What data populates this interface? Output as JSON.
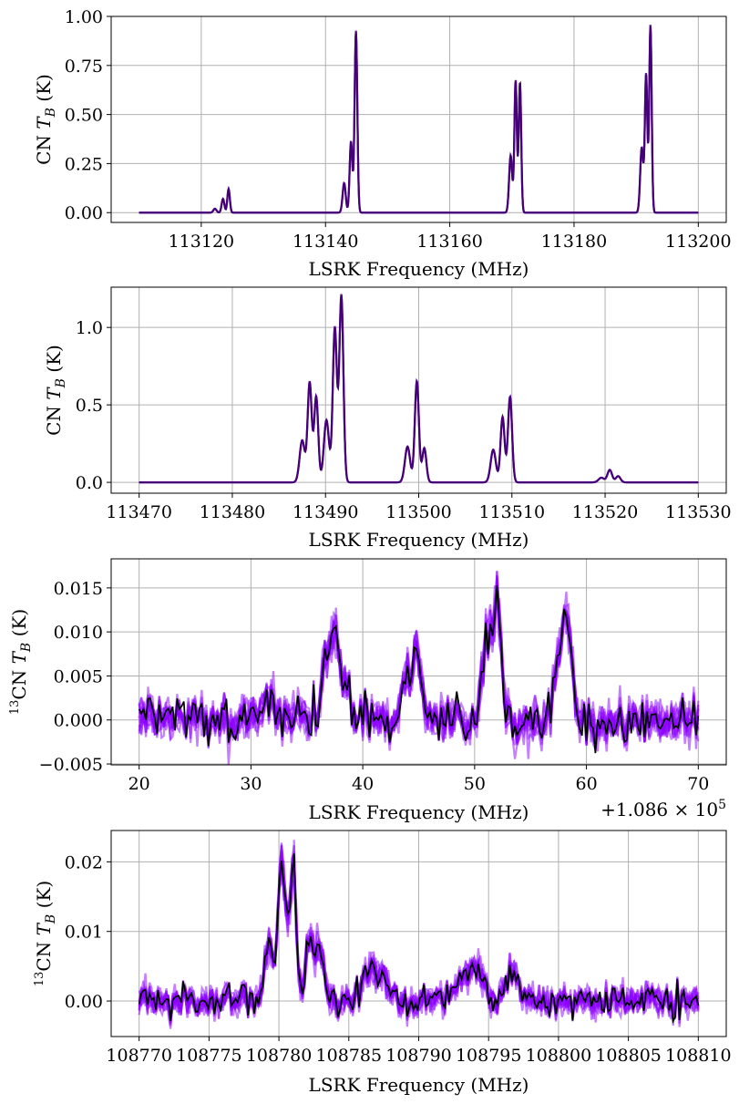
{
  "colors": {
    "samples": "#8b00ff",
    "posterior_mean": "#000000",
    "model": "#4b0082",
    "grid": "#b0b0b0"
  },
  "chart_data": [
    {
      "type": "line",
      "xlabel": "LSRK Frequency (MHz)",
      "ylabel": "CN T_B (K)",
      "ylabel_prefix": "CN ",
      "xlim": [
        113105.5,
        113204.5
      ],
      "ylim": [
        -0.05,
        1.0
      ],
      "xticks": [
        113120,
        113140,
        113160,
        113180,
        113200
      ],
      "xtick_labels": [
        "113120",
        "113140",
        "113160",
        "113180",
        "113200"
      ],
      "yticks": [
        0.0,
        0.25,
        0.5,
        0.75,
        1.0
      ],
      "ytick_labels": [
        "0.00",
        "0.25",
        "0.50",
        "0.75",
        "1.00"
      ],
      "grid": true,
      "x_range": [
        113110,
        113200
      ],
      "noisy": false,
      "components": [
        {
          "x": 113122.2,
          "amp": 0.02,
          "width": 0.25
        },
        {
          "x": 113123.5,
          "amp": 0.07,
          "width": 0.22
        },
        {
          "x": 113124.4,
          "amp": 0.12,
          "width": 0.2
        },
        {
          "x": 113143.0,
          "amp": 0.15,
          "width": 0.25
        },
        {
          "x": 113144.1,
          "amp": 0.36,
          "width": 0.22
        },
        {
          "x": 113144.9,
          "amp": 0.92,
          "width": 0.22
        },
        {
          "x": 113169.8,
          "amp": 0.29,
          "width": 0.25
        },
        {
          "x": 113170.6,
          "amp": 0.67,
          "width": 0.2
        },
        {
          "x": 113171.3,
          "amp": 0.66,
          "width": 0.2
        },
        {
          "x": 113190.9,
          "amp": 0.33,
          "width": 0.25
        },
        {
          "x": 113191.6,
          "amp": 0.7,
          "width": 0.2
        },
        {
          "x": 113192.3,
          "amp": 0.95,
          "width": 0.2
        }
      ]
    },
    {
      "type": "line",
      "xlabel": "LSRK Frequency (MHz)",
      "ylabel": "CN T_B (K)",
      "ylabel_prefix": "CN ",
      "xlim": [
        113467,
        113533
      ],
      "ylim": [
        -0.07,
        1.26
      ],
      "xticks": [
        113470,
        113480,
        113490,
        113500,
        113510,
        113520,
        113530
      ],
      "xtick_labels": [
        "113470",
        "113480",
        "113490",
        "113500",
        "113510",
        "113520",
        "113530"
      ],
      "yticks": [
        0.0,
        0.5,
        1.0
      ],
      "ytick_labels": [
        "0.0",
        "0.5",
        "1.0"
      ],
      "grid": true,
      "x_range": [
        113470,
        113530
      ],
      "noisy": false,
      "components": [
        {
          "x": 113487.5,
          "amp": 0.27,
          "width": 0.28
        },
        {
          "x": 113488.3,
          "amp": 0.64,
          "width": 0.22
        },
        {
          "x": 113489.0,
          "amp": 0.55,
          "width": 0.22
        },
        {
          "x": 113490.1,
          "amp": 0.4,
          "width": 0.28
        },
        {
          "x": 113491.0,
          "amp": 0.99,
          "width": 0.22
        },
        {
          "x": 113491.7,
          "amp": 1.2,
          "width": 0.22
        },
        {
          "x": 113498.8,
          "amp": 0.23,
          "width": 0.28
        },
        {
          "x": 113499.8,
          "amp": 0.65,
          "width": 0.22
        },
        {
          "x": 113500.6,
          "amp": 0.22,
          "width": 0.22
        },
        {
          "x": 113508.0,
          "amp": 0.21,
          "width": 0.28
        },
        {
          "x": 113509.0,
          "amp": 0.42,
          "width": 0.22
        },
        {
          "x": 113509.8,
          "amp": 0.55,
          "width": 0.22
        },
        {
          "x": 113519.6,
          "amp": 0.03,
          "width": 0.3
        },
        {
          "x": 113520.5,
          "amp": 0.08,
          "width": 0.25
        },
        {
          "x": 113521.4,
          "amp": 0.04,
          "width": 0.25
        }
      ]
    },
    {
      "type": "line",
      "xlabel": "LSRK Frequency (MHz)",
      "ylabel": "13CN T_B (K)",
      "ylabel_prefix": "CN ",
      "ylabel_superscript": "13",
      "offset_text_prefix": "+1.086 × 10",
      "offset_text_exponent": "5",
      "xlim": [
        17.5,
        72.5
      ],
      "ylim": [
        -0.0051,
        0.0183
      ],
      "xticks": [
        20,
        30,
        40,
        50,
        60,
        70
      ],
      "xtick_labels": [
        "20",
        "30",
        "40",
        "50",
        "60",
        "70"
      ],
      "yticks": [
        -0.005,
        0.0,
        0.005,
        0.01,
        0.015
      ],
      "ytick_labels": [
        "−0.005",
        "0.000",
        "0.005",
        "0.010",
        "0.015"
      ],
      "grid": true,
      "x_range": [
        20,
        70
      ],
      "noisy": true,
      "noise": 0.0013,
      "components": [
        {
          "x": 31.5,
          "amp": 0.0025,
          "width": 0.5
        },
        {
          "x": 36.7,
          "amp": 0.0065,
          "width": 0.4
        },
        {
          "x": 37.5,
          "amp": 0.009,
          "width": 0.4
        },
        {
          "x": 38.5,
          "amp": 0.004,
          "width": 0.4
        },
        {
          "x": 43.8,
          "amp": 0.0045,
          "width": 0.45
        },
        {
          "x": 44.8,
          "amp": 0.0065,
          "width": 0.45
        },
        {
          "x": 51.0,
          "amp": 0.0085,
          "width": 0.4
        },
        {
          "x": 52.0,
          "amp": 0.013,
          "width": 0.4
        },
        {
          "x": 57.5,
          "amp": 0.006,
          "width": 0.4
        },
        {
          "x": 58.3,
          "amp": 0.0105,
          "width": 0.4
        }
      ]
    },
    {
      "type": "line",
      "xlabel": "LSRK Frequency (MHz)",
      "ylabel": "13CN T_B (K)",
      "ylabel_prefix": "CN ",
      "ylabel_superscript": "13",
      "xlim": [
        108768,
        108812
      ],
      "ylim": [
        -0.0051,
        0.0245
      ],
      "xticks": [
        108770,
        108775,
        108780,
        108785,
        108790,
        108795,
        108800,
        108805,
        108810
      ],
      "xtick_labels": [
        "108770",
        "108775",
        "108780",
        "108785",
        "108790",
        "108795",
        "108800",
        "108805",
        "108810"
      ],
      "yticks": [
        0.0,
        0.01,
        0.02
      ],
      "ytick_labels": [
        "0.00",
        "0.01",
        "0.02"
      ],
      "grid": true,
      "x_range": [
        108770,
        108810
      ],
      "noisy": true,
      "noise": 0.0012,
      "components": [
        {
          "x": 108779.3,
          "amp": 0.008,
          "width": 0.28
        },
        {
          "x": 108780.2,
          "amp": 0.02,
          "width": 0.25
        },
        {
          "x": 108781.0,
          "amp": 0.02,
          "width": 0.25
        },
        {
          "x": 108782.2,
          "amp": 0.009,
          "width": 0.28
        },
        {
          "x": 108783.0,
          "amp": 0.008,
          "width": 0.28
        },
        {
          "x": 108786.2,
          "amp": 0.003,
          "width": 0.5
        },
        {
          "x": 108787.2,
          "amp": 0.004,
          "width": 0.5
        },
        {
          "x": 108793.2,
          "amp": 0.003,
          "width": 0.45
        },
        {
          "x": 108794.2,
          "amp": 0.0045,
          "width": 0.45
        },
        {
          "x": 108796.6,
          "amp": 0.0045,
          "width": 0.45
        }
      ]
    }
  ]
}
